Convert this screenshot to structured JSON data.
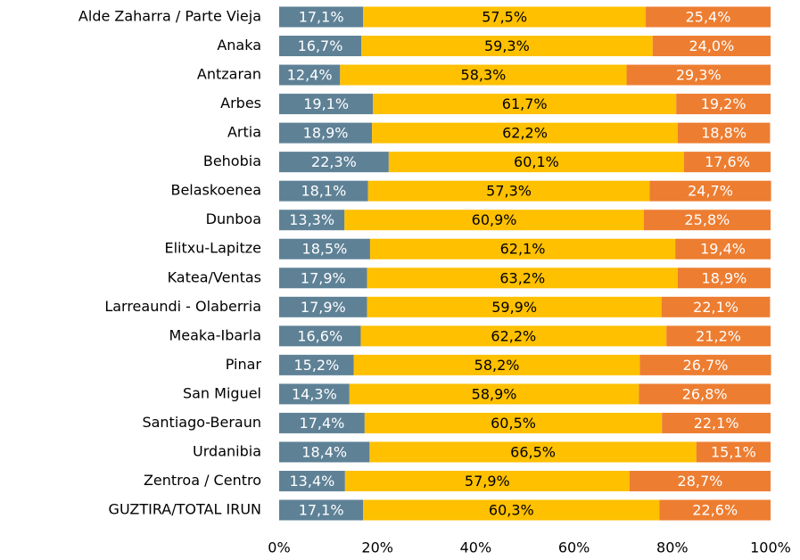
{
  "chart_data": {
    "type": "stacked_barh",
    "categories": [
      "Alde Zaharra / Parte Vieja",
      "Anaka",
      "Antzaran",
      "Arbes",
      "Artia",
      "Behobia",
      "Belaskoenea",
      "Dunboa",
      "Elitxu-Lapitze",
      "Katea/Ventas",
      "Larreaundi - Olaberria",
      "Meaka-Ibarla",
      "Pinar",
      "San Miguel",
      "Santiago-Beraun",
      "Urdanibia",
      "Zentroa / Centro",
      "GUZTIRA/TOTAL IRUN"
    ],
    "series": [
      {
        "color": "#5e8196",
        "values": [
          17.1,
          16.7,
          12.4,
          19.1,
          18.9,
          22.3,
          18.1,
          13.3,
          18.5,
          17.9,
          17.9,
          16.6,
          15.2,
          14.3,
          17.4,
          18.4,
          13.4,
          17.1
        ],
        "value_labels": [
          "17,1%",
          "16,7%",
          "12,4%",
          "19,1%",
          "18,9%",
          "22,3%",
          "18,1%",
          "13,3%",
          "18,5%",
          "17,9%",
          "17,9%",
          "16,6%",
          "15,2%",
          "14,3%",
          "17,4%",
          "18,4%",
          "13,4%",
          "17,1%"
        ]
      },
      {
        "color": "#ffc000",
        "values": [
          57.5,
          59.3,
          58.3,
          61.7,
          62.2,
          60.1,
          57.3,
          60.9,
          62.1,
          63.2,
          59.9,
          62.2,
          58.2,
          58.9,
          60.5,
          66.5,
          57.9,
          60.3
        ],
        "value_labels": [
          "57,5%",
          "59,3%",
          "58,3%",
          "61,7%",
          "62,2%",
          "60,1%",
          "57,3%",
          "60,9%",
          "62,1%",
          "63,2%",
          "59,9%",
          "62,2%",
          "58,2%",
          "58,9%",
          "60,5%",
          "66,5%",
          "57,9%",
          "60,3%"
        ]
      },
      {
        "color": "#ed7d31",
        "values": [
          25.4,
          24.0,
          29.3,
          19.2,
          18.8,
          17.6,
          24.7,
          25.8,
          19.4,
          18.9,
          22.1,
          21.2,
          26.7,
          26.8,
          22.1,
          15.1,
          28.7,
          22.6
        ],
        "value_labels": [
          "25,4%",
          "24,0%",
          "29,3%",
          "19,2%",
          "18,8%",
          "17,6%",
          "24,7%",
          "25,8%",
          "19,4%",
          "18,9%",
          "22,1%",
          "21,2%",
          "26,7%",
          "26,8%",
          "22,1%",
          "15,1%",
          "28,7%",
          "22,6%"
        ]
      }
    ],
    "xlim": [
      0,
      100
    ],
    "xticks": [
      {
        "value": 0,
        "label": "0%"
      },
      {
        "value": 20,
        "label": "20%"
      },
      {
        "value": 40,
        "label": "40%"
      },
      {
        "value": 60,
        "label": "60%"
      },
      {
        "value": 80,
        "label": "80%"
      },
      {
        "value": 100,
        "label": "100%"
      }
    ]
  }
}
